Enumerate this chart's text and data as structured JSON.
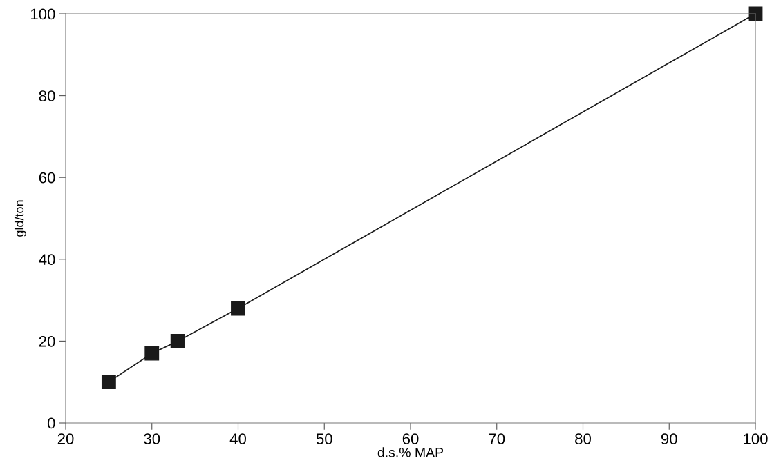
{
  "chart_data": {
    "type": "line",
    "xlabel": "d.s.% MAP",
    "ylabel": "gld/ton",
    "x": [
      25,
      30,
      33,
      40,
      100
    ],
    "series": [
      {
        "color": "#1a1a1a",
        "values": [
          10,
          17,
          20,
          28,
          100
        ]
      }
    ],
    "xlim": [
      20,
      100
    ],
    "ylim": [
      0,
      100
    ],
    "xticks": [
      20,
      30,
      40,
      50,
      60,
      70,
      80,
      90,
      100
    ],
    "yticks": [
      0,
      20,
      40,
      60,
      80,
      100
    ],
    "marker": "square",
    "line_style": "solid",
    "grid": false,
    "legend": false
  }
}
